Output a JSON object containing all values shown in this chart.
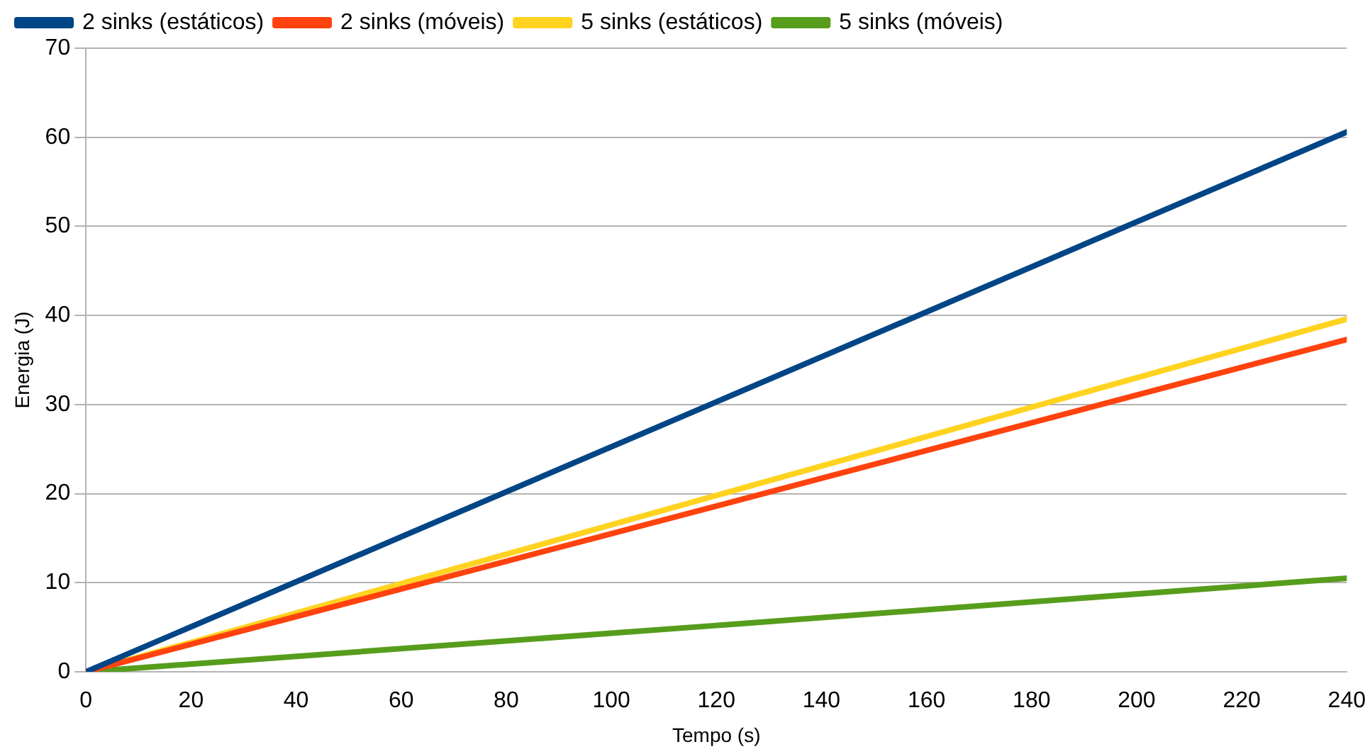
{
  "chart_data": {
    "type": "line",
    "xlabel": "Tempo (s)",
    "ylabel": "Energia (J)",
    "x": [
      0,
      120,
      240
    ],
    "series": [
      {
        "name": "2 sinks (estáticos)",
        "color": "#004586",
        "values": [
          0,
          30.3,
          60.6
        ]
      },
      {
        "name": "2 sinks (móveis)",
        "color": "#ff420e",
        "values": [
          0,
          18.6,
          37.3
        ]
      },
      {
        "name": "5 sinks (estáticos)",
        "color": "#ffd320",
        "values": [
          0,
          19.8,
          39.6
        ]
      },
      {
        "name": "5 sinks (móveis)",
        "color": "#579d1c",
        "values": [
          0,
          5.2,
          10.5
        ]
      }
    ],
    "xlim": [
      0,
      240
    ],
    "xticks": [
      0,
      20,
      40,
      60,
      80,
      100,
      120,
      140,
      160,
      180,
      200,
      220,
      240
    ],
    "ylim": [
      0,
      70
    ],
    "yticks": [
      0,
      10,
      20,
      30,
      40,
      50,
      60,
      70
    ],
    "grid": "y",
    "legend": "top",
    "marker": "none",
    "line_style": "solid"
  }
}
